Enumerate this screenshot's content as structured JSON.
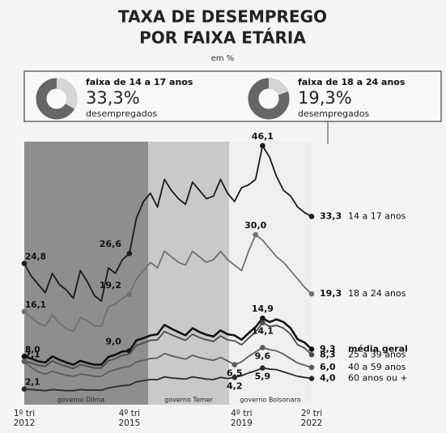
{
  "chart_data": {
    "type": "line",
    "title_lines": [
      "TAXA DE DESEMPREGO",
      "POR FAIXA ETÁRIA"
    ],
    "subtitle": "em %",
    "callouts": [
      {
        "title": "faixa de 14 a 17 anos",
        "value": 33.3,
        "value_label": "33,3%",
        "note": "desempregados"
      },
      {
        "title": "faixa de 18 a 24 anos",
        "value": 19.3,
        "value_label": "19,3%",
        "note": "desempregados"
      }
    ],
    "periods": [
      "governo Dilma",
      "governo Temer",
      "governo Bolsonaro"
    ],
    "categories": [
      "1º tri\n2012",
      null,
      null,
      null,
      null,
      null,
      null,
      null,
      null,
      null,
      null,
      null,
      null,
      null,
      null,
      "4º tri\n2015",
      null,
      null,
      null,
      null,
      null,
      null,
      null,
      null,
      null,
      null,
      null,
      null,
      null,
      null,
      null,
      "4º tri\n2019",
      null,
      null,
      null,
      null,
      null,
      null,
      null,
      null,
      null,
      "2º tri\n2022"
    ],
    "series": [
      {
        "name": "14 a 17 anos",
        "color": "#1a1a1a",
        "values": [
          24.8,
          22.5,
          21.0,
          19.5,
          23.0,
          21.0,
          20.0,
          18.5,
          23.5,
          21.5,
          19.0,
          18.0,
          24.0,
          23.0,
          25.5,
          26.6,
          33.0,
          36.0,
          37.5,
          35.0,
          40.0,
          38.0,
          36.5,
          35.5,
          39.5,
          38.0,
          36.5,
          37.0,
          40.0,
          37.5,
          36.0,
          38.5,
          39.0,
          40.0,
          46.1,
          44.0,
          40.5,
          38.0,
          37.0,
          35.0,
          34.0,
          33.3
        ],
        "value_labels": [
          "24,8",
          null,
          null,
          null,
          null,
          null,
          null,
          null,
          null,
          null,
          null,
          null,
          null,
          null,
          null,
          "26,6",
          null,
          null,
          null,
          null,
          null,
          null,
          null,
          null,
          null,
          null,
          null,
          null,
          null,
          null,
          null,
          null,
          null,
          null,
          "46,1",
          null,
          null,
          null,
          null,
          null,
          null,
          "33,3"
        ]
      },
      {
        "name": "18 a 24 anos",
        "color": "#707070",
        "values": [
          16.1,
          15.0,
          14.0,
          13.5,
          15.5,
          14.0,
          13.0,
          12.5,
          15.0,
          14.5,
          13.5,
          13.5,
          17.0,
          17.5,
          18.5,
          19.2,
          22.0,
          23.5,
          25.0,
          24.0,
          27.0,
          26.0,
          25.0,
          24.5,
          27.0,
          26.0,
          25.0,
          25.5,
          27.0,
          25.5,
          24.5,
          23.5,
          27.0,
          30.0,
          29.0,
          27.5,
          26.0,
          25.0,
          23.5,
          22.0,
          20.5,
          19.3
        ],
        "value_labels": [
          "16,1",
          null,
          null,
          null,
          null,
          null,
          null,
          null,
          null,
          null,
          null,
          null,
          null,
          null,
          null,
          "19,2",
          null,
          null,
          null,
          null,
          null,
          null,
          null,
          null,
          null,
          null,
          null,
          null,
          null,
          null,
          null,
          null,
          null,
          "30,0",
          null,
          null,
          null,
          null,
          null,
          null,
          null,
          "19,3"
        ]
      },
      {
        "name": "média geral",
        "color": "#111111",
        "values": [
          8.0,
          7.6,
          7.1,
          6.9,
          8.0,
          7.4,
          6.9,
          6.5,
          7.2,
          6.8,
          6.5,
          6.5,
          7.9,
          8.3,
          8.9,
          9.0,
          10.9,
          11.3,
          11.8,
          12.0,
          13.7,
          13.0,
          12.4,
          11.8,
          13.1,
          12.4,
          11.9,
          11.6,
          12.7,
          12.0,
          11.8,
          11.0,
          12.2,
          13.3,
          14.9,
          14.2,
          14.7,
          14.2,
          13.1,
          11.1,
          10.5,
          9.3
        ],
        "value_labels": [
          "8,0",
          null,
          null,
          null,
          null,
          null,
          null,
          null,
          null,
          null,
          null,
          null,
          null,
          null,
          null,
          "9,0",
          null,
          null,
          null,
          null,
          null,
          null,
          null,
          null,
          null,
          null,
          null,
          null,
          null,
          null,
          null,
          null,
          null,
          null,
          "14,9",
          null,
          null,
          null,
          null,
          null,
          null,
          "9,3"
        ]
      },
      {
        "name": "25 a 39 anos",
        "color": "#4a4a4a",
        "values": [
          7.1,
          6.8,
          6.4,
          6.2,
          7.2,
          6.6,
          6.2,
          5.8,
          6.5,
          6.2,
          5.9,
          5.9,
          7.2,
          7.6,
          8.2,
          8.4,
          10.0,
          10.4,
          10.9,
          11.0,
          12.5,
          11.9,
          11.4,
          10.9,
          12.0,
          11.4,
          11.0,
          10.7,
          11.7,
          11.0,
          10.8,
          10.1,
          11.3,
          12.4,
          14.1,
          13.4,
          13.6,
          13.1,
          12.0,
          10.1,
          9.5,
          8.3
        ],
        "value_labels": [
          "7,1",
          null,
          null,
          null,
          null,
          null,
          null,
          null,
          null,
          null,
          null,
          null,
          null,
          null,
          null,
          null,
          null,
          null,
          null,
          null,
          null,
          null,
          null,
          null,
          null,
          null,
          null,
          null,
          null,
          null,
          null,
          null,
          null,
          null,
          "14,1",
          null,
          null,
          null,
          null,
          null,
          null,
          "8,3"
        ]
      },
      {
        "name": "40 a 59 anos",
        "color": "#5c5c5c",
        "values": [
          7.1,
          6.0,
          5.2,
          4.8,
          5.3,
          4.9,
          4.6,
          4.4,
          4.8,
          4.6,
          4.4,
          4.4,
          5.2,
          5.6,
          6.0,
          6.2,
          7.0,
          7.3,
          7.6,
          7.7,
          8.5,
          8.1,
          7.8,
          7.5,
          8.2,
          7.8,
          7.5,
          7.3,
          7.8,
          7.2,
          6.5,
          7.0,
          8.0,
          8.8,
          9.6,
          9.2,
          9.0,
          8.4,
          7.6,
          6.8,
          6.4,
          6.0
        ],
        "value_labels": [
          "7,1",
          null,
          null,
          null,
          null,
          null,
          null,
          null,
          null,
          null,
          null,
          null,
          null,
          null,
          null,
          null,
          null,
          null,
          null,
          null,
          null,
          null,
          null,
          null,
          null,
          null,
          null,
          null,
          null,
          null,
          "6,5",
          null,
          null,
          null,
          "9,6",
          null,
          null,
          null,
          null,
          null,
          null,
          "6,0"
        ]
      },
      {
        "name": "60 anos ou +",
        "color": "#2a2a2a",
        "values": [
          2.1,
          2.0,
          1.9,
          1.8,
          2.0,
          1.9,
          1.8,
          1.8,
          2.0,
          1.9,
          1.9,
          1.9,
          2.3,
          2.5,
          2.7,
          2.8,
          3.4,
          3.6,
          3.8,
          3.8,
          4.3,
          4.1,
          4.0,
          3.9,
          4.3,
          4.1,
          3.9,
          3.8,
          4.2,
          4.0,
          4.2,
          4.5,
          5.0,
          5.4,
          5.9,
          5.7,
          5.6,
          5.2,
          4.8,
          4.4,
          4.2,
          4.0
        ],
        "value_labels": [
          "2,1",
          null,
          null,
          null,
          null,
          null,
          null,
          null,
          null,
          null,
          null,
          null,
          null,
          null,
          null,
          null,
          null,
          null,
          null,
          null,
          null,
          null,
          null,
          null,
          null,
          null,
          null,
          null,
          null,
          null,
          "4,2",
          null,
          null,
          null,
          "5,9",
          null,
          null,
          null,
          null,
          null,
          null,
          "4,0"
        ]
      }
    ]
  }
}
